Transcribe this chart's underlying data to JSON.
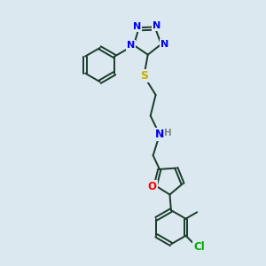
{
  "bg_color": "#dce8f0",
  "atom_colors": {
    "N": "#0000ee",
    "O": "#ff0000",
    "S": "#ccaa00",
    "Cl": "#00aa00",
    "C": "#1a3a2a",
    "H": "#778888"
  },
  "bond_color": "#1a3a2a",
  "bond_width": 1.4,
  "font_size_atom": 8.5
}
